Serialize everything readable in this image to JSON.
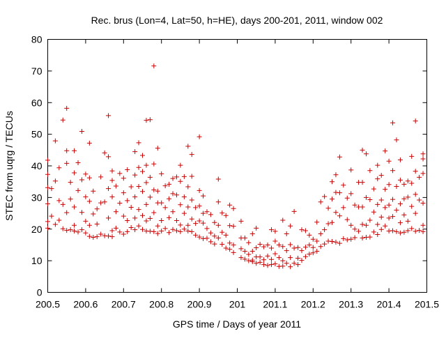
{
  "chart_data": {
    "type": "scatter",
    "title": "Rec. brus (Lon=4, Lat=50, h=HE), days 200-201, 2011, window 002",
    "xlabel": "GPS time / Days of year 2011",
    "ylabel": "STEC from uqrg / TECUs",
    "xlim": [
      200.5,
      201.5
    ],
    "ylim": [
      0,
      80
    ],
    "xticks": [
      200.5,
      200.6,
      200.7,
      200.8,
      200.9,
      201,
      201.1,
      201.2,
      201.3,
      201.4,
      201.5
    ],
    "xtick_labels": [
      "200.5",
      "200.6",
      "200.7",
      "200.8",
      "200.9",
      "201",
      "201.1",
      "201.2",
      "201.3",
      "201.4",
      "201.5"
    ],
    "yticks": [
      0,
      10,
      20,
      30,
      40,
      50,
      60,
      70,
      80
    ],
    "ytick_labels": [
      "0",
      "10",
      "20",
      "30",
      "40",
      "50",
      "60",
      "70",
      "80"
    ],
    "marker": "+",
    "grid": false,
    "legend": "none",
    "series_color": "#cc0000",
    "points": [
      [
        200.5,
        41.8
      ],
      [
        200.5,
        37.3
      ],
      [
        200.5,
        33.1
      ],
      [
        200.5,
        28.0
      ],
      [
        200.5,
        22.4
      ],
      [
        200.5,
        20.3
      ],
      [
        200.51,
        32.8
      ],
      [
        200.51,
        24.1
      ],
      [
        200.52,
        47.9
      ],
      [
        200.52,
        35.2
      ],
      [
        200.52,
        21.5
      ],
      [
        200.53,
        39.4
      ],
      [
        200.53,
        29.0
      ],
      [
        200.53,
        22.8
      ],
      [
        200.54,
        54.5
      ],
      [
        200.54,
        27.8
      ],
      [
        200.54,
        20.1
      ],
      [
        200.55,
        58.2
      ],
      [
        200.55,
        44.8
      ],
      [
        200.55,
        40.8
      ],
      [
        200.55,
        25.2
      ],
      [
        200.55,
        19.6
      ],
      [
        200.56,
        34.8
      ],
      [
        200.56,
        29.5
      ],
      [
        200.56,
        19.8
      ],
      [
        200.57,
        44.8
      ],
      [
        200.57,
        37.8
      ],
      [
        200.57,
        27.0
      ],
      [
        200.57,
        21.2
      ],
      [
        200.57,
        19.4
      ],
      [
        200.58,
        41.0
      ],
      [
        200.58,
        32.2
      ],
      [
        200.58,
        19.1
      ],
      [
        200.59,
        35.6
      ],
      [
        200.59,
        25.3
      ],
      [
        200.59,
        19.8
      ],
      [
        200.59,
        50.9
      ],
      [
        200.6,
        37.4
      ],
      [
        200.6,
        30.2
      ],
      [
        200.6,
        22.5
      ],
      [
        200.6,
        18.8
      ],
      [
        200.61,
        47.2
      ],
      [
        200.61,
        36.2
      ],
      [
        200.61,
        28.8
      ],
      [
        200.61,
        21.2
      ],
      [
        200.61,
        17.7
      ],
      [
        200.62,
        32.0
      ],
      [
        200.62,
        24.8
      ],
      [
        200.62,
        17.4
      ],
      [
        200.63,
        26.4
      ],
      [
        200.63,
        21.6
      ],
      [
        200.63,
        17.6
      ],
      [
        200.64,
        36.5
      ],
      [
        200.64,
        28.3
      ],
      [
        200.64,
        18.4
      ],
      [
        200.65,
        44.1
      ],
      [
        200.65,
        28.6
      ],
      [
        200.65,
        17.9
      ],
      [
        200.66,
        55.9
      ],
      [
        200.66,
        42.9
      ],
      [
        200.66,
        32.8
      ],
      [
        200.66,
        23.5
      ],
      [
        200.66,
        17.8
      ],
      [
        200.67,
        38.4
      ],
      [
        200.67,
        35.4
      ],
      [
        200.67,
        30.2
      ],
      [
        200.67,
        19.5
      ],
      [
        200.67,
        17.6
      ],
      [
        200.68,
        33.6
      ],
      [
        200.68,
        25.5
      ],
      [
        200.68,
        20.3
      ],
      [
        200.69,
        37.6
      ],
      [
        200.69,
        28.2
      ],
      [
        200.69,
        19.1
      ],
      [
        200.7,
        36.1
      ],
      [
        200.7,
        31.5
      ],
      [
        200.7,
        24.1
      ],
      [
        200.7,
        18.4
      ],
      [
        200.71,
        38.8
      ],
      [
        200.71,
        29.0
      ],
      [
        200.71,
        22.7
      ],
      [
        200.71,
        19.2
      ],
      [
        200.72,
        33.4
      ],
      [
        200.72,
        26.9
      ],
      [
        200.72,
        20.5
      ],
      [
        200.73,
        44.5
      ],
      [
        200.73,
        37.1
      ],
      [
        200.73,
        30.2
      ],
      [
        200.73,
        23.5
      ],
      [
        200.73,
        19.8
      ],
      [
        200.74,
        47.3
      ],
      [
        200.74,
        39.5
      ],
      [
        200.74,
        33.5
      ],
      [
        200.74,
        26.2
      ],
      [
        200.74,
        21.0
      ],
      [
        200.75,
        43.3
      ],
      [
        200.75,
        38.2
      ],
      [
        200.75,
        31.9
      ],
      [
        200.75,
        24.3
      ],
      [
        200.75,
        19.9
      ],
      [
        200.76,
        54.4
      ],
      [
        200.76,
        40.2
      ],
      [
        200.76,
        34.7
      ],
      [
        200.76,
        27.8
      ],
      [
        200.76,
        22.6
      ],
      [
        200.76,
        19.4
      ],
      [
        200.77,
        54.6
      ],
      [
        200.77,
        36.4
      ],
      [
        200.77,
        30.1
      ],
      [
        200.77,
        23.4
      ],
      [
        200.77,
        19.3
      ],
      [
        200.78,
        71.6
      ],
      [
        200.78,
        40.6
      ],
      [
        200.78,
        32.4
      ],
      [
        200.78,
        25.2
      ],
      [
        200.78,
        19.2
      ],
      [
        200.79,
        45.6
      ],
      [
        200.79,
        32.0
      ],
      [
        200.79,
        28.3
      ],
      [
        200.79,
        21.0
      ],
      [
        200.79,
        18.6
      ],
      [
        200.8,
        37.5
      ],
      [
        200.8,
        28.3
      ],
      [
        200.8,
        22.7
      ],
      [
        200.8,
        19.4
      ],
      [
        200.81,
        33.7
      ],
      [
        200.81,
        26.8
      ],
      [
        200.81,
        20.2
      ],
      [
        200.82,
        34.2
      ],
      [
        200.82,
        29.6
      ],
      [
        200.82,
        23.6
      ],
      [
        200.82,
        18.9
      ],
      [
        200.83,
        36.0
      ],
      [
        200.83,
        31.2
      ],
      [
        200.83,
        25.5
      ],
      [
        200.83,
        19.9
      ],
      [
        200.84,
        36.5
      ],
      [
        200.84,
        30.8
      ],
      [
        200.84,
        22.7
      ],
      [
        200.84,
        19.5
      ],
      [
        200.85,
        40.2
      ],
      [
        200.85,
        35.1
      ],
      [
        200.85,
        27.7
      ],
      [
        200.85,
        21.3
      ],
      [
        200.85,
        19.2
      ],
      [
        200.86,
        36.6
      ],
      [
        200.86,
        30.2
      ],
      [
        200.86,
        25.0
      ],
      [
        200.86,
        20.0
      ],
      [
        200.87,
        46.2
      ],
      [
        200.87,
        33.4
      ],
      [
        200.87,
        27.0
      ],
      [
        200.87,
        21.2
      ],
      [
        200.87,
        19.4
      ],
      [
        200.88,
        43.6
      ],
      [
        200.88,
        36.7
      ],
      [
        200.88,
        29.2
      ],
      [
        200.88,
        23.2
      ],
      [
        200.88,
        19.2
      ],
      [
        200.89,
        26.8
      ],
      [
        200.89,
        21.8
      ],
      [
        200.89,
        18.1
      ],
      [
        200.9,
        49.2
      ],
      [
        200.9,
        32.2
      ],
      [
        200.9,
        27.3
      ],
      [
        200.9,
        22.6
      ],
      [
        200.9,
        17.5
      ],
      [
        200.91,
        30.5
      ],
      [
        200.91,
        25.0
      ],
      [
        200.91,
        21.9
      ],
      [
        200.91,
        17.0
      ],
      [
        200.92,
        25.5
      ],
      [
        200.92,
        20.2
      ],
      [
        200.92,
        17.1
      ],
      [
        200.93,
        24.6
      ],
      [
        200.93,
        18.8
      ],
      [
        200.93,
        16.0
      ],
      [
        200.94,
        22.1
      ],
      [
        200.94,
        17.8
      ],
      [
        200.94,
        15.3
      ],
      [
        200.95,
        35.8
      ],
      [
        200.95,
        28.6
      ],
      [
        200.95,
        21.2
      ],
      [
        200.95,
        17.2
      ],
      [
        200.96,
        25.1
      ],
      [
        200.96,
        19.0
      ],
      [
        200.96,
        15.2
      ],
      [
        200.97,
        24.3
      ],
      [
        200.97,
        18.1
      ],
      [
        200.97,
        14.0
      ],
      [
        200.98,
        27.6
      ],
      [
        200.98,
        21.1
      ],
      [
        200.98,
        15.6
      ],
      [
        200.98,
        13.6
      ],
      [
        200.99,
        26.5
      ],
      [
        200.99,
        20.9
      ],
      [
        200.99,
        15.0
      ],
      [
        200.99,
        12.6
      ],
      [
        201.01,
        22.5
      ],
      [
        201.01,
        17.2
      ],
      [
        201.01,
        13.8
      ],
      [
        201.01,
        11.0
      ],
      [
        201.02,
        17.2
      ],
      [
        201.02,
        13.0
      ],
      [
        201.02,
        10.5
      ],
      [
        201.03,
        15.7
      ],
      [
        201.03,
        12.0
      ],
      [
        201.03,
        10.0
      ],
      [
        201.04,
        18.5
      ],
      [
        201.04,
        13.0
      ],
      [
        201.04,
        10.2
      ],
      [
        201.04,
        9.7
      ],
      [
        201.05,
        20.3
      ],
      [
        201.05,
        14.1
      ],
      [
        201.05,
        11.2
      ],
      [
        201.05,
        9.2
      ],
      [
        201.06,
        15.2
      ],
      [
        201.06,
        11.2
      ],
      [
        201.06,
        9.5
      ],
      [
        201.07,
        14.4
      ],
      [
        201.07,
        10.3
      ],
      [
        201.07,
        8.8
      ],
      [
        201.08,
        15.0
      ],
      [
        201.08,
        11.5
      ],
      [
        201.08,
        8.5
      ],
      [
        201.09,
        19.8
      ],
      [
        201.09,
        14.0
      ],
      [
        201.09,
        10.4
      ],
      [
        201.09,
        8.8
      ],
      [
        201.1,
        19.3
      ],
      [
        201.1,
        16.2
      ],
      [
        201.1,
        12.2
      ],
      [
        201.1,
        9.0
      ],
      [
        201.11,
        15.0
      ],
      [
        201.11,
        11.0
      ],
      [
        201.11,
        8.2
      ],
      [
        201.12,
        22.8
      ],
      [
        201.12,
        14.5
      ],
      [
        201.12,
        10.0
      ],
      [
        201.12,
        8.3
      ],
      [
        201.13,
        18.5
      ],
      [
        201.13,
        13.2
      ],
      [
        201.13,
        9.2
      ],
      [
        201.14,
        21.0
      ],
      [
        201.14,
        15.1
      ],
      [
        201.14,
        11.0
      ],
      [
        201.14,
        8.1
      ],
      [
        201.15,
        25.6
      ],
      [
        201.15,
        14.0
      ],
      [
        201.15,
        9.2
      ],
      [
        201.16,
        14.2
      ],
      [
        201.16,
        10.8
      ],
      [
        201.16,
        8.8
      ],
      [
        201.17,
        19.8
      ],
      [
        201.17,
        13.2
      ],
      [
        201.17,
        10.1
      ],
      [
        201.18,
        19.5
      ],
      [
        201.18,
        14.3
      ],
      [
        201.18,
        11.3
      ],
      [
        201.19,
        18.1
      ],
      [
        201.19,
        15.0
      ],
      [
        201.19,
        12.1
      ],
      [
        201.2,
        16.8
      ],
      [
        201.2,
        14.2
      ],
      [
        201.2,
        12.5
      ],
      [
        201.21,
        22.2
      ],
      [
        201.21,
        16.2
      ],
      [
        201.21,
        13.0
      ],
      [
        201.22,
        28.6
      ],
      [
        201.22,
        18.5
      ],
      [
        201.22,
        14.5
      ],
      [
        201.23,
        30.3
      ],
      [
        201.23,
        19.8
      ],
      [
        201.23,
        15.3
      ],
      [
        201.24,
        26.6
      ],
      [
        201.24,
        21.7
      ],
      [
        201.24,
        16.2
      ],
      [
        201.25,
        35.0
      ],
      [
        201.25,
        29.5
      ],
      [
        201.25,
        22.1
      ],
      [
        201.25,
        16.1
      ],
      [
        201.26,
        37.2
      ],
      [
        201.26,
        31.6
      ],
      [
        201.26,
        25.3
      ],
      [
        201.26,
        15.9
      ],
      [
        201.27,
        42.8
      ],
      [
        201.27,
        31.5
      ],
      [
        201.27,
        24.2
      ],
      [
        201.27,
        15.5
      ],
      [
        201.28,
        33.9
      ],
      [
        201.28,
        26.8
      ],
      [
        201.28,
        17.0
      ],
      [
        201.29,
        29.8
      ],
      [
        201.29,
        23.0
      ],
      [
        201.29,
        16.6
      ],
      [
        201.3,
        38.7
      ],
      [
        201.3,
        31.2
      ],
      [
        201.3,
        21.2
      ],
      [
        201.3,
        16.8
      ],
      [
        201.31,
        27.6
      ],
      [
        201.31,
        20.0
      ],
      [
        201.31,
        17.3
      ],
      [
        201.32,
        34.8
      ],
      [
        201.32,
        27.0
      ],
      [
        201.32,
        19.3
      ],
      [
        201.33,
        45.0
      ],
      [
        201.33,
        34.8
      ],
      [
        201.33,
        27.0
      ],
      [
        201.33,
        21.5
      ],
      [
        201.33,
        17.2
      ],
      [
        201.34,
        43.8
      ],
      [
        201.34,
        30.0
      ],
      [
        201.34,
        21.2
      ],
      [
        201.34,
        17.4
      ],
      [
        201.35,
        38.5
      ],
      [
        201.35,
        29.3
      ],
      [
        201.35,
        22.8
      ],
      [
        201.35,
        17.5
      ],
      [
        201.36,
        32.7
      ],
      [
        201.36,
        25.4
      ],
      [
        201.36,
        19.1
      ],
      [
        201.37,
        40.2
      ],
      [
        201.37,
        35.9
      ],
      [
        201.37,
        27.8
      ],
      [
        201.37,
        21.5
      ],
      [
        201.37,
        18.3
      ],
      [
        201.38,
        37.0
      ],
      [
        201.38,
        29.2
      ],
      [
        201.38,
        23.8
      ],
      [
        201.38,
        19.9
      ],
      [
        201.39,
        44.7
      ],
      [
        201.39,
        32.6
      ],
      [
        201.39,
        26.8
      ],
      [
        201.39,
        21.0
      ],
      [
        201.4,
        41.5
      ],
      [
        201.4,
        34.1
      ],
      [
        201.4,
        27.6
      ],
      [
        201.4,
        23.5
      ],
      [
        201.4,
        19.4
      ],
      [
        201.41,
        53.6
      ],
      [
        201.41,
        38.5
      ],
      [
        201.41,
        29.4
      ],
      [
        201.41,
        24.0
      ],
      [
        201.41,
        19.5
      ],
      [
        201.42,
        48.2
      ],
      [
        201.42,
        33.5
      ],
      [
        201.42,
        26.0
      ],
      [
        201.42,
        19.2
      ],
      [
        201.43,
        41.9
      ],
      [
        201.43,
        35.5
      ],
      [
        201.43,
        28.0
      ],
      [
        201.43,
        22.0
      ],
      [
        201.43,
        18.8
      ],
      [
        201.44,
        34.2
      ],
      [
        201.44,
        29.6
      ],
      [
        201.44,
        24.5
      ],
      [
        201.44,
        19.0
      ],
      [
        201.45,
        35.2
      ],
      [
        201.45,
        30.1
      ],
      [
        201.45,
        22.5
      ],
      [
        201.45,
        19.5
      ],
      [
        201.46,
        43.0
      ],
      [
        201.46,
        34.5
      ],
      [
        201.46,
        27.2
      ],
      [
        201.46,
        20.2
      ],
      [
        201.47,
        54.2
      ],
      [
        201.47,
        38.3
      ],
      [
        201.47,
        31.0
      ],
      [
        201.47,
        25.0
      ],
      [
        201.47,
        19.3
      ],
      [
        201.48,
        36.4
      ],
      [
        201.48,
        29.2
      ],
      [
        201.48,
        19.6
      ],
      [
        201.49,
        43.8
      ],
      [
        201.49,
        42.2
      ],
      [
        201.49,
        37.6
      ],
      [
        201.49,
        28.2
      ],
      [
        201.49,
        21.2
      ],
      [
        201.49,
        19.2
      ]
    ]
  }
}
